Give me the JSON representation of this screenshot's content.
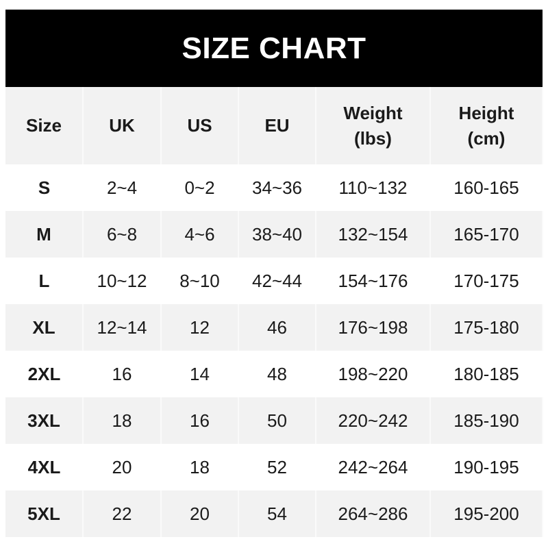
{
  "title": "SIZE CHART",
  "headers": [
    "Size",
    "UK",
    "US",
    "EU",
    "Weight\n(lbs)",
    "Height\n(cm)"
  ],
  "rows": [
    [
      "S",
      "2~4",
      "0~2",
      "34~36",
      "110~132",
      "160-165"
    ],
    [
      "M",
      "6~8",
      "4~6",
      "38~40",
      "132~154",
      "165-170"
    ],
    [
      "L",
      "10~12",
      "8~10",
      "42~44",
      "154~176",
      "170-175"
    ],
    [
      "XL",
      "12~14",
      "12",
      "46",
      "176~198",
      "175-180"
    ],
    [
      "2XL",
      "16",
      "14",
      "48",
      "198~220",
      "180-185"
    ],
    [
      "3XL",
      "18",
      "16",
      "50",
      "220~242",
      "185-190"
    ],
    [
      "4XL",
      "20",
      "18",
      "52",
      "242~264",
      "190-195"
    ],
    [
      "5XL",
      "22",
      "20",
      "54",
      "264~286",
      "195-200"
    ]
  ],
  "colors": {
    "title_bg": "#000000",
    "stripe": "#f2f2f2"
  }
}
